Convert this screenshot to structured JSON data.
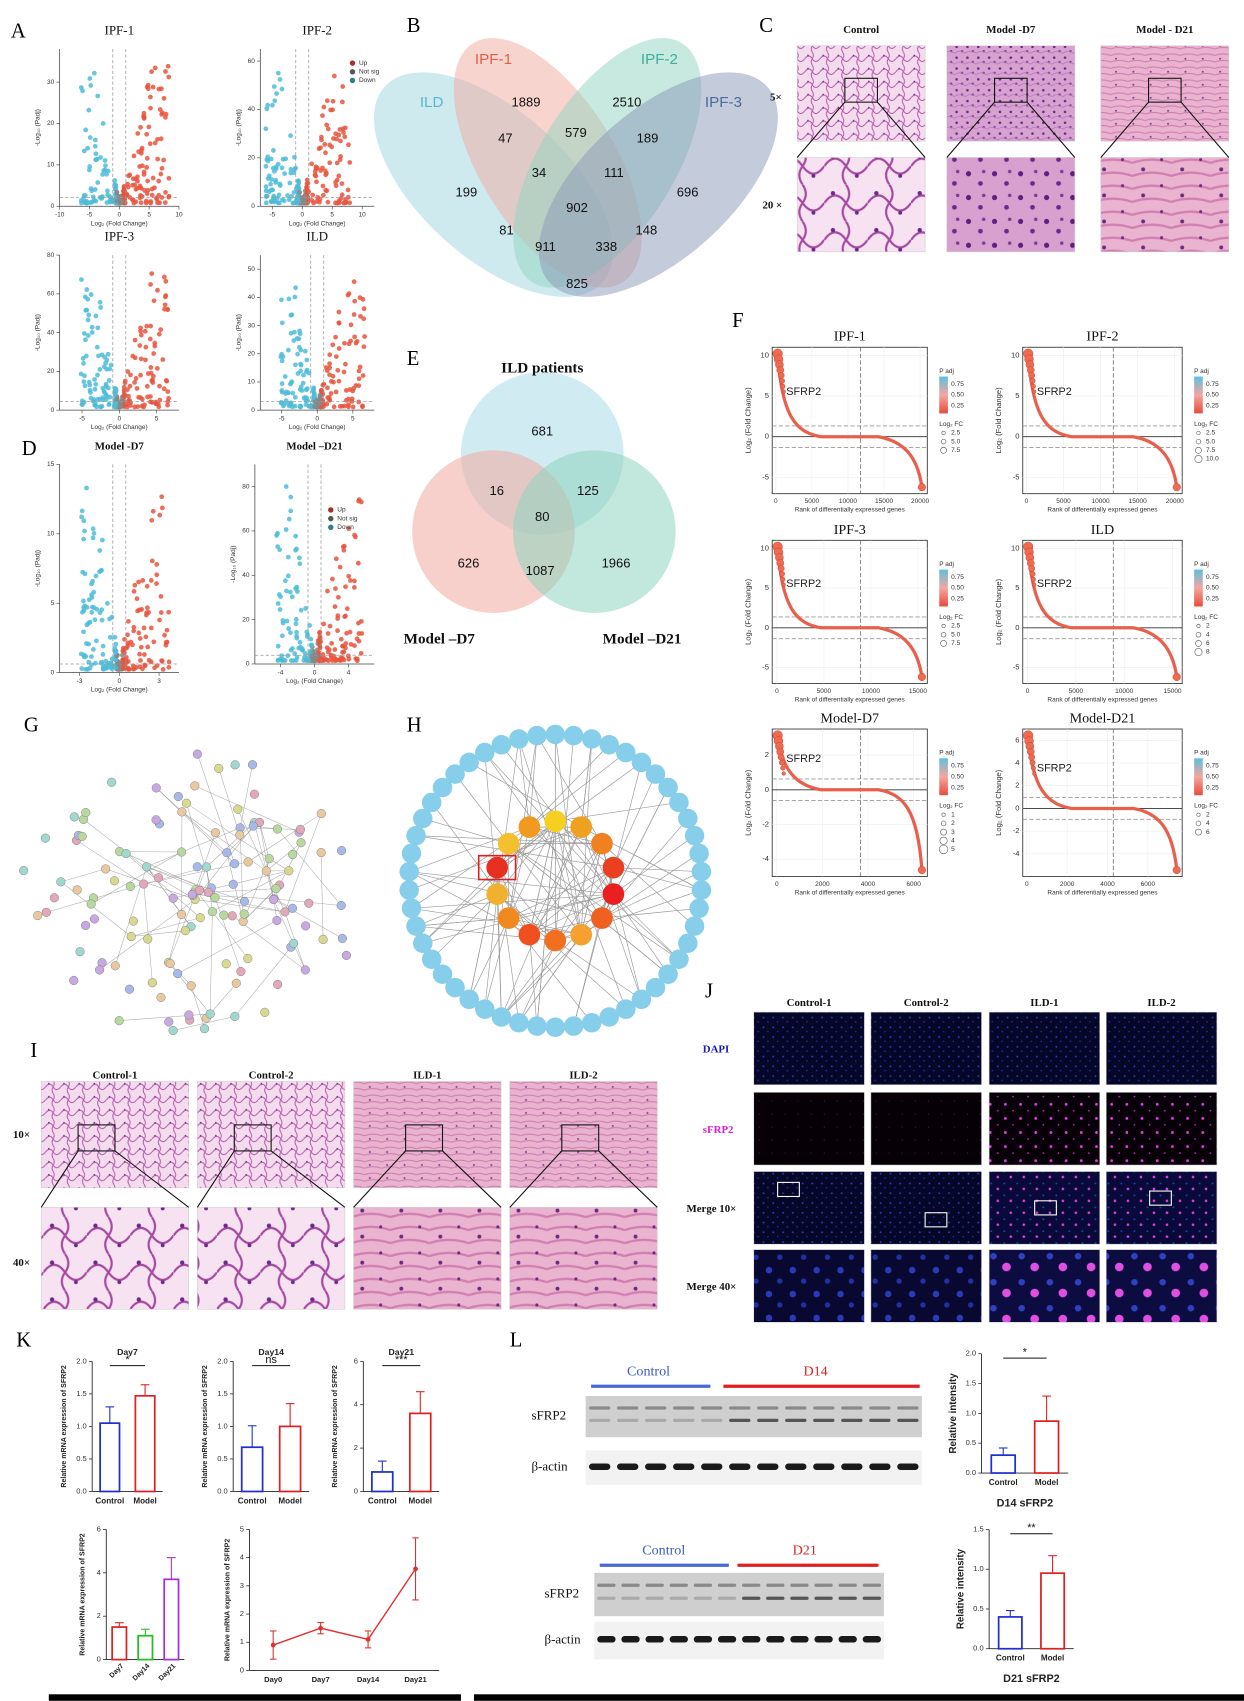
{
  "panel_letters": [
    "A",
    "B",
    "C",
    "D",
    "E",
    "F",
    "G",
    "H",
    "I",
    "J",
    "K",
    "L"
  ],
  "volcano": {
    "xlabel": "Log₂ (Fold Change)",
    "ylabel": "-Log₁₀ (Padj)",
    "legend": [
      "Up",
      "Not sig",
      "Down"
    ],
    "plots": [
      {
        "title": "IPF-1",
        "xlim": [
          -10,
          10
        ],
        "xticks": [
          -10,
          -5,
          0,
          5,
          10
        ],
        "ylim": [
          0,
          38
        ],
        "yticks": [
          0,
          10,
          20,
          30
        ]
      },
      {
        "title": "IPF-2",
        "xlim": [
          -7,
          12
        ],
        "xticks": [
          -5,
          0,
          5,
          10
        ],
        "ylim": [
          0,
          65
        ],
        "yticks": [
          0,
          20,
          40,
          60
        ]
      },
      {
        "title": "IPF-3",
        "xlim": [
          -8,
          8
        ],
        "xticks": [
          -5,
          0,
          5
        ],
        "ylim": [
          0,
          80
        ],
        "yticks": [
          0,
          20,
          40,
          60,
          80
        ]
      },
      {
        "title": "ILD",
        "xlim": [
          -8,
          8
        ],
        "xticks": [
          -5,
          0,
          5
        ],
        "ylim": [
          0,
          55
        ],
        "yticks": [
          0,
          10,
          20,
          30,
          40,
          50
        ]
      },
      {
        "title": "Model -D7",
        "xlim": [
          -4.5,
          4.5
        ],
        "xticks": [
          -3,
          0,
          3
        ],
        "ylim": [
          0,
          15
        ],
        "yticks": [
          0,
          5,
          10,
          15
        ]
      },
      {
        "title": "Model –D21",
        "xlim": [
          -7,
          7
        ],
        "xticks": [
          -4,
          0,
          4
        ],
        "ylim": [
          0,
          90
        ],
        "yticks": [
          0,
          20,
          40,
          60,
          80
        ]
      }
    ]
  },
  "venn4": {
    "labels": [
      "ILD",
      "IPF-1",
      "IPF-2",
      "IPF-3"
    ],
    "counts": [
      1889,
      2510,
      47,
      579,
      189,
      199,
      34,
      111,
      696,
      902,
      81,
      148,
      911,
      338,
      825
    ]
  },
  "histology_c": {
    "columns": [
      "Control",
      "Model -D7",
      "Model - D21"
    ],
    "rows": [
      "5×",
      "20 ×"
    ]
  },
  "venn3": {
    "title": "ILD patients",
    "labels": [
      "Model –D7",
      "Model –D21"
    ],
    "counts": [
      681,
      16,
      125,
      80,
      626,
      1087,
      1966
    ]
  },
  "rank": {
    "xlabel": "Rank of differentially expressed genes",
    "ylabel": "Log₂ (Fold Change)",
    "gene": "SFRP2",
    "padj_title": "P adj",
    "padj_ticks": [
      "0.75",
      "0.50",
      "0.25"
    ],
    "fc_title": "Log₂ FC",
    "plots": [
      {
        "title": "IPF-1",
        "xlim": [
          -500,
          21000
        ],
        "xticks": [
          0,
          5000,
          10000,
          15000,
          20000
        ],
        "ylim": [
          -7,
          11
        ],
        "yticks": [
          -5,
          0,
          5,
          10
        ],
        "fc": [
          "2.5",
          "5.0",
          "7.5"
        ]
      },
      {
        "title": "IPF-2",
        "xlim": [
          -500,
          21000
        ],
        "xticks": [
          0,
          5000,
          10000,
          15000,
          20000
        ],
        "ylim": [
          -7,
          11
        ],
        "yticks": [
          -5,
          0,
          5,
          10
        ],
        "fc": [
          "2.5",
          "5.0",
          "7.5",
          "10.0"
        ]
      },
      {
        "title": "IPF-3",
        "xlim": [
          -500,
          16000
        ],
        "xticks": [
          0,
          5000,
          10000,
          15000
        ],
        "ylim": [
          -7,
          11
        ],
        "yticks": [
          -5,
          0,
          5,
          10
        ],
        "fc": [
          "2.5",
          "5.0",
          "7.5"
        ]
      },
      {
        "title": "ILD",
        "xlim": [
          -500,
          16000
        ],
        "xticks": [
          0,
          5000,
          10000,
          15000
        ],
        "ylim": [
          -7,
          11
        ],
        "yticks": [
          -5,
          0,
          5,
          10
        ],
        "fc": [
          "2",
          "4",
          "6",
          "8"
        ]
      },
      {
        "title": "Model-D7",
        "xlim": [
          -200,
          6600
        ],
        "xticks": [
          0,
          2000,
          4000,
          6000
        ],
        "ylim": [
          -5,
          3.5
        ],
        "yticks": [
          -4,
          -2,
          0,
          2
        ],
        "fc": [
          "1",
          "2",
          "3",
          "4",
          "5"
        ]
      },
      {
        "title": "Model-D21",
        "xlim": [
          -200,
          7700
        ],
        "xticks": [
          0,
          2000,
          4000,
          6000
        ],
        "ylim": [
          -6,
          7
        ],
        "yticks": [
          -4,
          -2,
          0,
          2,
          4,
          6
        ],
        "fc": [
          "2",
          "4",
          "6"
        ]
      }
    ]
  },
  "histology_i": {
    "columns": [
      "Control-1",
      "Control-2",
      "ILD-1",
      "ILD-2"
    ],
    "rows": [
      "10×",
      "40×"
    ]
  },
  "fluorescence_j": {
    "columns": [
      "Control-1",
      "Control-2",
      "ILD-1",
      "ILD-2"
    ],
    "rows": [
      "DAPI",
      "sFRP2",
      "Merge 10×",
      "Merge 40×"
    ]
  },
  "qpcr": {
    "ylabel": "Relative mRNA expression of SFRP2",
    "charts": [
      {
        "title": "Day7",
        "categories": [
          "Control",
          "Model"
        ],
        "values": [
          1.05,
          1.47
        ],
        "errors": [
          0.25,
          0.17
        ],
        "colors": [
          "#1f2fd0",
          "#e02020"
        ],
        "ylim": [
          0,
          2
        ],
        "yticks": [
          {
            "value": 0,
            "label": "0.0"
          },
          {
            "value": 0.5,
            "label": "0.5"
          },
          {
            "value": 1,
            "label": "1.0"
          },
          {
            "value": 1.5,
            "label": "1.5"
          },
          {
            "value": 2,
            "label": "2.0"
          }
        ],
        "significance": "*"
      },
      {
        "title": "Day14",
        "categories": [
          "Control",
          "Model"
        ],
        "values": [
          0.68,
          1.0
        ],
        "errors": [
          0.33,
          0.35
        ],
        "colors": [
          "#1f2fd0",
          "#e02020"
        ],
        "ylim": [
          0,
          2
        ],
        "yticks": [
          {
            "value": 0,
            "label": "0.0"
          },
          {
            "value": 0.5,
            "label": "0.5"
          },
          {
            "value": 1,
            "label": "1.0"
          },
          {
            "value": 1.5,
            "label": "1.5"
          },
          {
            "value": 2,
            "label": "2.0"
          }
        ],
        "significance": "ns"
      },
      {
        "title": "Day21",
        "categories": [
          "Control",
          "Model"
        ],
        "values": [
          0.9,
          3.6
        ],
        "errors": [
          0.5,
          1.0
        ],
        "colors": [
          "#1f2fd0",
          "#e02020"
        ],
        "ylim": [
          0,
          6
        ],
        "yticks": [
          0,
          2,
          4,
          6
        ],
        "significance": "***"
      }
    ],
    "time_bars": {
      "categories": [
        "Day7",
        "Day14",
        "Day21"
      ],
      "values": [
        1.5,
        1.1,
        3.7
      ],
      "errors": [
        0.2,
        0.3,
        1.0
      ],
      "colors": [
        "#e02020",
        "#20c020",
        "#a030e0"
      ],
      "ylim": [
        0,
        6
      ],
      "yticks": [
        0,
        2,
        4,
        6
      ]
    },
    "time_line": {
      "categories": [
        "Day0",
        "Day7",
        "Day14",
        "Day21"
      ],
      "values": [
        0.9,
        1.5,
        1.1,
        3.6
      ],
      "errors": [
        0.5,
        0.2,
        0.3,
        1.1
      ],
      "color": "#e03030",
      "ylim": [
        0,
        5
      ],
      "yticks": [
        0,
        1,
        2,
        3,
        4,
        5
      ]
    }
  },
  "western": {
    "blots": [
      {
        "groups": [
          "Control",
          "D14"
        ],
        "rows": [
          "sFRP2",
          "β-actin"
        ]
      },
      {
        "groups": [
          "Control",
          "D21"
        ],
        "rows": [
          "sFRP2",
          "β-actin"
        ]
      }
    ],
    "ylabel": "Relative intensity",
    "charts": [
      {
        "title": "D14 sFRP2",
        "categories": [
          "Control",
          "Model"
        ],
        "values": [
          0.3,
          0.87
        ],
        "errors": [
          0.12,
          0.42
        ],
        "colors": [
          "#1f2fd0",
          "#e02020"
        ],
        "ylim": [
          0,
          2
        ],
        "yticks": [
          {
            "value": 0,
            "label": "0.0"
          },
          {
            "value": 0.5,
            "label": "0.5"
          },
          {
            "value": 1,
            "label": "1.0"
          },
          {
            "value": 1.5,
            "label": "1.5"
          },
          {
            "value": 2,
            "label": "2.0"
          }
        ],
        "significance": "*"
      },
      {
        "title": "D21 sFRP2",
        "categories": [
          "Control",
          "Model"
        ],
        "values": [
          0.4,
          0.95
        ],
        "errors": [
          0.08,
          0.22
        ],
        "colors": [
          "#1f2fd0",
          "#e02020"
        ],
        "ylim": [
          0,
          1.5
        ],
        "yticks": [
          {
            "value": 0,
            "label": "0.0"
          },
          {
            "value": 0.5,
            "label": "0.5"
          },
          {
            "value": 1,
            "label": "1.0"
          },
          {
            "value": 1.5,
            "label": "1.5"
          }
        ],
        "significance": "**"
      }
    ]
  }
}
